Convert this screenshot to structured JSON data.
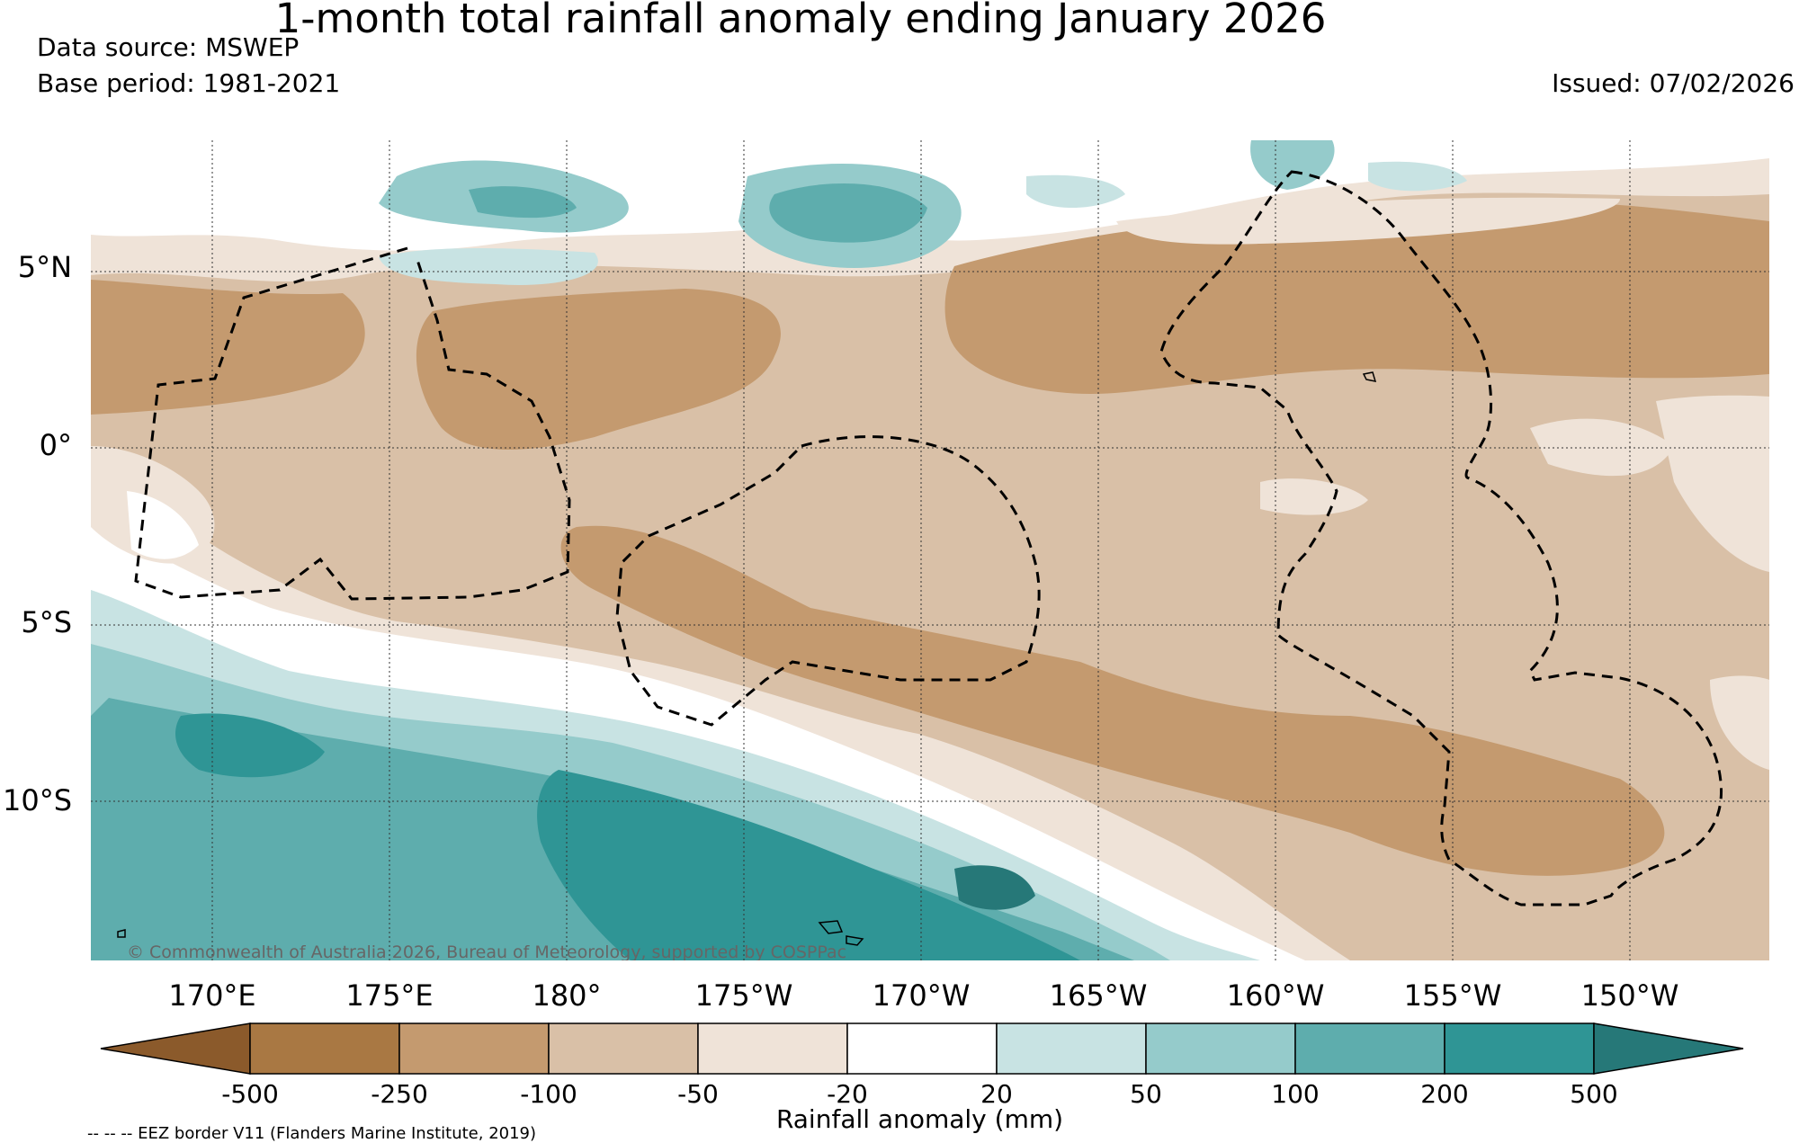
{
  "title": "1-month total rainfall anomaly ending January 2026",
  "data_source": "Data source: MSWEP",
  "base_period": "Base period: 1981-2021",
  "issued": "Issued: 07/02/2026",
  "copyright": "© Commonwealth of Australia 2026, Bureau of Meteorology, supported by COSPPac",
  "lat_labels": [
    "5°N",
    "0°",
    "5°S",
    "10°S"
  ],
  "lon_labels": [
    "170°E",
    "175°E",
    "180°",
    "175°W",
    "170°W",
    "165°W",
    "160°W",
    "155°W",
    "150°W"
  ],
  "colorbar": {
    "title": "Rainfall anomaly (mm)",
    "ticks": [
      "-500",
      "-250",
      "-100",
      "-50",
      "-20",
      "20",
      "50",
      "100",
      "200",
      "500"
    ],
    "colors": [
      "#8b5a2b",
      "#a97843",
      "#c49a6f",
      "#d9c0a7",
      "#efe3d8",
      "#ffffff",
      "#c8e3e3",
      "#95cbcb",
      "#5eadad",
      "#2f9595",
      "#267878"
    ]
  },
  "legend_note": "-- -- -- EEZ border V11 (Flanders Marine Institute, 2019)"
}
